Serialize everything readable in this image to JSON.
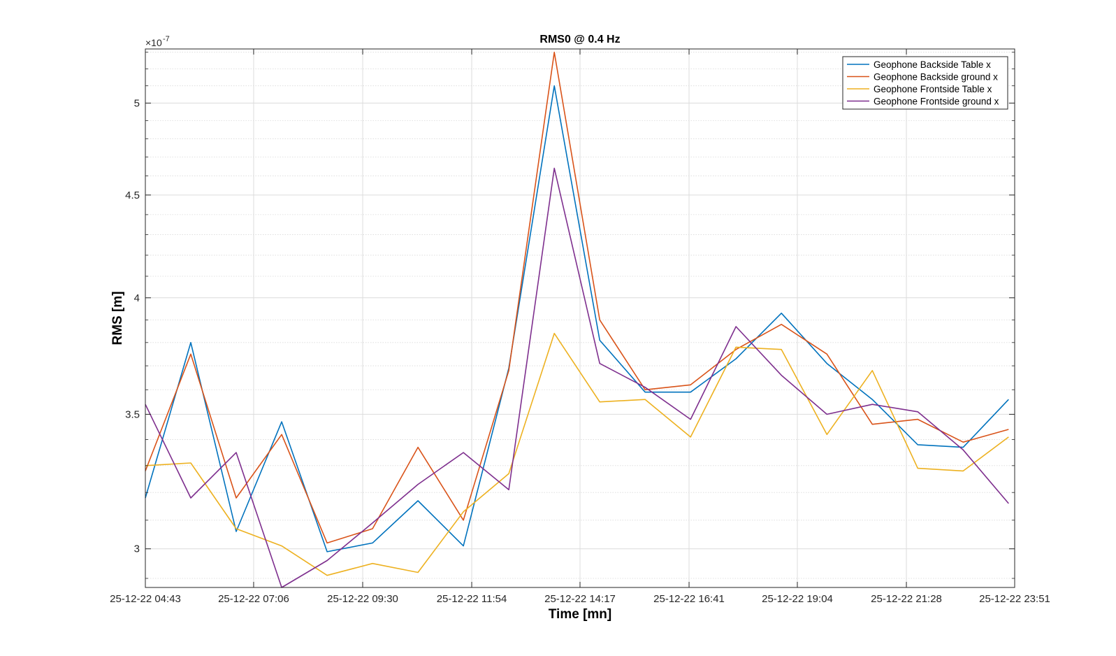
{
  "chart_data": {
    "type": "line",
    "title": "RMS0 @ 0.4 Hz",
    "xlabel": "Time [mn]",
    "ylabel": "RMS [m]",
    "y_exponent_label": "×10",
    "y_exponent_power": "-7",
    "y_scale": "log",
    "y_multiplier": 1e-07,
    "ylim": [
      2.87,
      5.32
    ],
    "x_ticks": [
      "25-12-22 04:43",
      "25-12-22 07:06",
      "25-12-22 09:30",
      "25-12-22 11:54",
      "25-12-22 14:17",
      "25-12-22 16:41",
      "25-12-22 19:04",
      "25-12-22 21:28",
      "25-12-22 23:51"
    ],
    "y_ticks": [
      3,
      3.5,
      4,
      4.5,
      5
    ],
    "y_tick_labels": [
      "3",
      "3.5",
      "4",
      "4.5",
      "5"
    ],
    "grid": true,
    "minor_grid": true,
    "legend_position": "top-right",
    "x": [
      "25-12-22 04:43",
      "25-12-22 05:43",
      "25-12-22 06:43",
      "25-12-22 07:43",
      "25-12-22 08:43",
      "25-12-22 09:43",
      "25-12-22 10:43",
      "25-12-22 11:43",
      "25-12-22 12:43",
      "25-12-22 13:43",
      "25-12-22 14:43",
      "25-12-22 15:43",
      "25-12-22 16:43",
      "25-12-22 17:43",
      "25-12-22 18:43",
      "25-12-22 19:43",
      "25-12-22 20:43",
      "25-12-22 21:43",
      "25-12-22 22:43",
      "25-12-22 23:43"
    ],
    "series": [
      {
        "name": "Geophone Backside Table x",
        "color": "#0072BD",
        "values": [
          3.18,
          3.8,
          3.06,
          3.47,
          2.99,
          3.02,
          3.17,
          3.01,
          3.69,
          5.1,
          3.81,
          3.59,
          3.59,
          3.73,
          3.93,
          3.71,
          3.56,
          3.38,
          3.37,
          3.56
        ]
      },
      {
        "name": "Geophone Backside ground x",
        "color": "#D95319",
        "values": [
          3.28,
          3.75,
          3.18,
          3.42,
          3.02,
          3.07,
          3.37,
          3.1,
          3.68,
          5.3,
          3.9,
          3.6,
          3.62,
          3.77,
          3.88,
          3.75,
          3.46,
          3.48,
          3.39,
          3.44
        ]
      },
      {
        "name": "Geophone Frontside Table x",
        "color": "#EDB120",
        "values": [
          3.3,
          3.31,
          3.07,
          3.01,
          2.91,
          2.95,
          2.92,
          3.13,
          3.27,
          3.84,
          3.55,
          3.56,
          3.41,
          3.78,
          3.77,
          3.42,
          3.68,
          3.29,
          3.28,
          3.41
        ]
      },
      {
        "name": "Geophone Frontside ground x",
        "color": "#7E2F8E",
        "values": [
          3.54,
          3.18,
          3.35,
          2.87,
          2.96,
          3.09,
          3.23,
          3.35,
          3.21,
          4.64,
          3.71,
          3.61,
          3.48,
          3.87,
          3.66,
          3.5,
          3.54,
          3.51,
          3.36,
          3.16
        ]
      }
    ]
  }
}
